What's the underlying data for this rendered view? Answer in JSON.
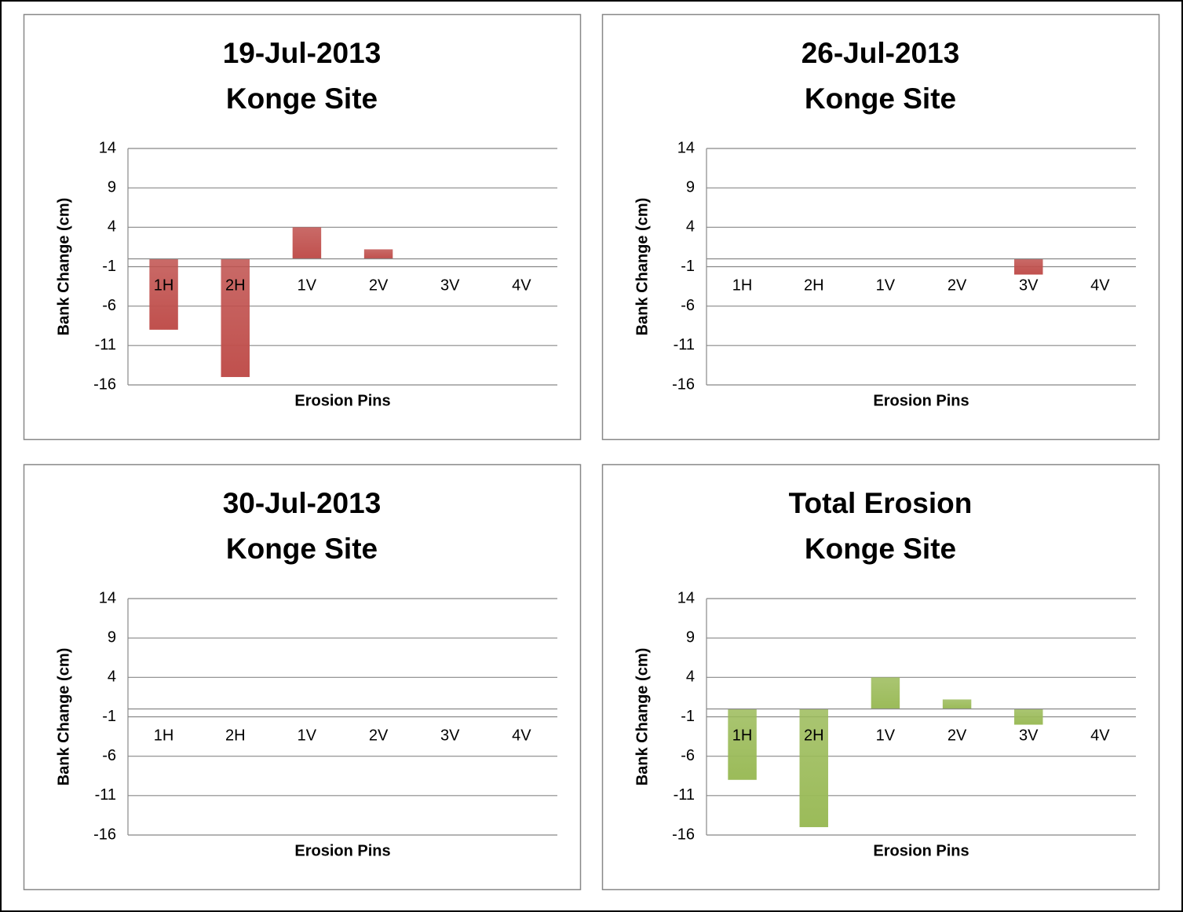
{
  "chart_data": [
    {
      "type": "bar",
      "title": [
        "19-Jul-2013",
        "Konge Site"
      ],
      "x_label": "Erosion Pins",
      "y_label": "Bank Change (cm)",
      "categories": [
        "1H",
        "2H",
        "1V",
        "2V",
        "3V",
        "4V"
      ],
      "values": [
        -9,
        -15,
        4,
        1.2,
        0,
        0
      ],
      "color": "#c0504d",
      "ylim": [
        -16,
        14
      ],
      "yticks": [
        -16,
        -11,
        -6,
        -1,
        4,
        9,
        14
      ],
      "grid": true
    },
    {
      "type": "bar",
      "title": [
        "26-Jul-2013",
        "Konge Site"
      ],
      "x_label": "Erosion Pins",
      "y_label": "Bank Change (cm)",
      "categories": [
        "1H",
        "2H",
        "1V",
        "2V",
        "3V",
        "4V"
      ],
      "values": [
        0,
        0,
        0,
        0,
        -2,
        0
      ],
      "color": "#c0504d",
      "ylim": [
        -16,
        14
      ],
      "yticks": [
        -16,
        -11,
        -6,
        -1,
        4,
        9,
        14
      ],
      "grid": true
    },
    {
      "type": "bar",
      "title": [
        "30-Jul-2013",
        "Konge Site"
      ],
      "x_label": "Erosion Pins",
      "y_label": "Bank Change (cm)",
      "categories": [
        "1H",
        "2H",
        "1V",
        "2V",
        "3V",
        "4V"
      ],
      "values": [
        0,
        0,
        0,
        0,
        0,
        0
      ],
      "color": "#c0504d",
      "ylim": [
        -16,
        14
      ],
      "yticks": [
        -16,
        -11,
        -6,
        -1,
        4,
        9,
        14
      ],
      "grid": true
    },
    {
      "type": "bar",
      "title": [
        "Total Erosion",
        "Konge Site"
      ],
      "x_label": "Erosion Pins",
      "y_label": "Bank Change (cm)",
      "categories": [
        "1H",
        "2H",
        "1V",
        "2V",
        "3V",
        "4V"
      ],
      "values": [
        -9,
        -15,
        4,
        1.2,
        -2,
        0
      ],
      "color": "#9bbb59",
      "ylim": [
        -16,
        14
      ],
      "yticks": [
        -16,
        -11,
        -6,
        -1,
        4,
        9,
        14
      ],
      "grid": true
    }
  ]
}
